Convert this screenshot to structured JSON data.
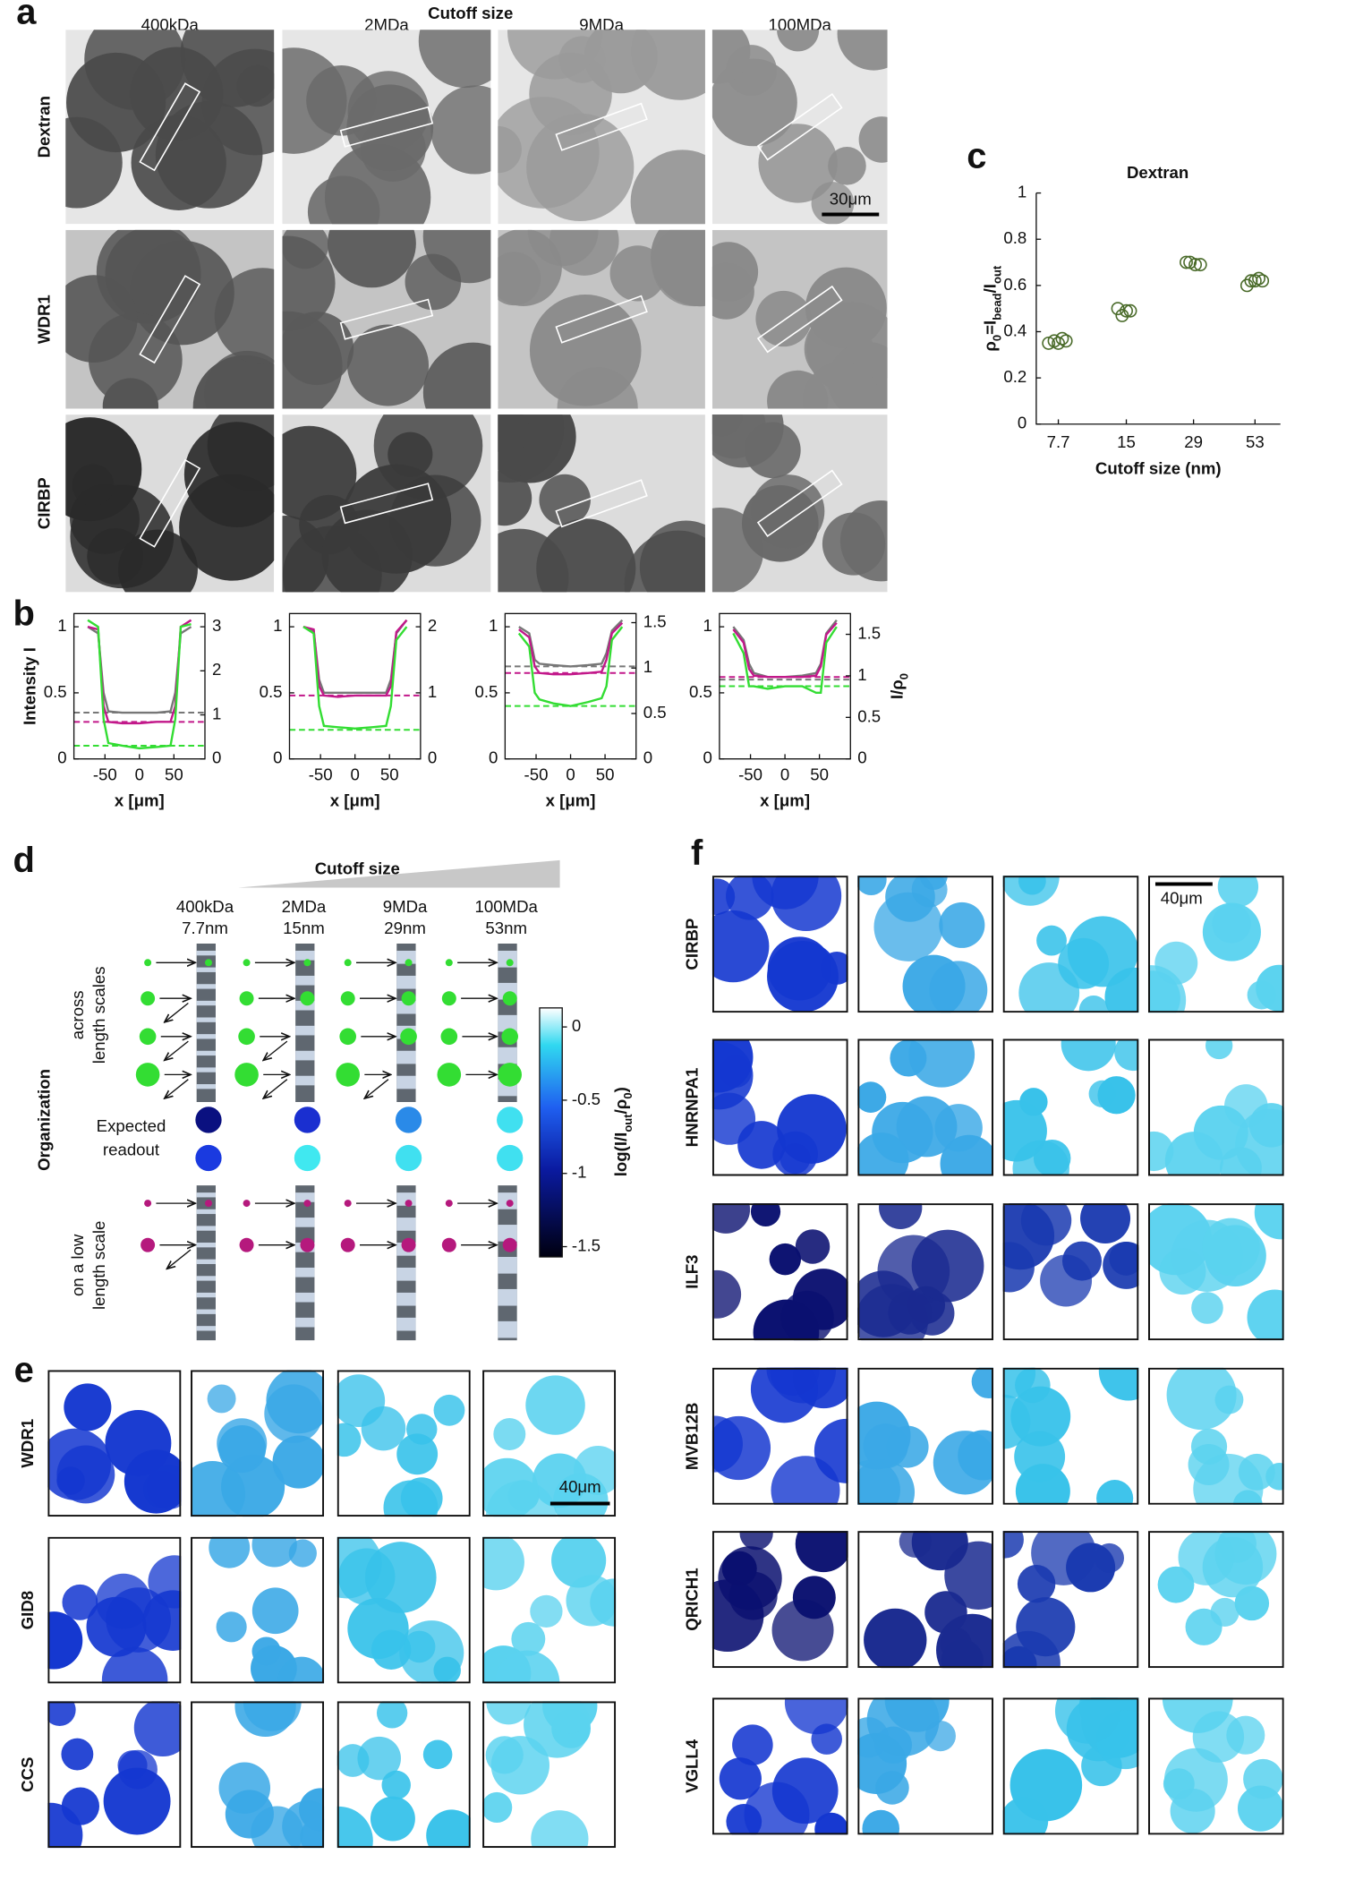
{
  "figure": {
    "a": {
      "label": "a",
      "title": "Cutoff size",
      "columns": [
        "400kDa",
        "2MDa",
        "9MDa",
        "100MDa"
      ],
      "rows": [
        {
          "text": "Dextran",
          "color": "#3d5a1f"
        },
        {
          "text": "WDR1",
          "color": "#b5197d"
        },
        {
          "text": "CIRBP",
          "color": "#33dd33"
        }
      ],
      "scale_bar": "30μm"
    },
    "b": {
      "label": "b"
    },
    "c": {
      "label": "c"
    },
    "d": {
      "label": "d",
      "title": "Cutoff size",
      "columns": [
        "400kDa",
        "2MDa",
        "9MDa",
        "100MDa"
      ],
      "sizes": [
        "7.7nm",
        "15nm",
        "29nm",
        "53nm"
      ],
      "organization": "Organization",
      "rows": [
        [
          "across",
          "length scales"
        ],
        [
          "Expected",
          "readout"
        ],
        [
          "on a low",
          "length scale"
        ]
      ],
      "colorbar": {
        "label": [
          "log(I/I",
          "out",
          "/ρ",
          "0",
          ")"
        ],
        "lim": [
          -1.57,
          0.13
        ],
        "ticks": [
          0,
          -0.5,
          -1,
          -1.5
        ]
      }
    },
    "e": {
      "label": "e",
      "rows": [
        {
          "text": "WDR1",
          "color": "#b5197d"
        },
        {
          "text": "GID8",
          "color": "#e8431c"
        },
        {
          "text": "CCS",
          "color": "#8a2be2"
        }
      ],
      "scale_bar": "40μm"
    },
    "f": {
      "label": "f",
      "rows": [
        {
          "text": "CIRBP",
          "color": "#33dd33"
        },
        {
          "text": "HNRNPA1",
          "color": "#40d6c4"
        },
        {
          "text": "ILF3",
          "color": "#29b6e6"
        },
        {
          "text": "MVB12B",
          "color": "#5a6ee0"
        },
        {
          "text": "QRICH1",
          "color": "#f0d020"
        },
        {
          "text": "VGLL4",
          "color": "#f5a623"
        }
      ],
      "scale_bar": "40μm"
    }
  },
  "chart_data": [
    {
      "type": "line",
      "ylabel": "Intensity I",
      "xlabel": "x [μm]",
      "xlim": [
        -95,
        95
      ],
      "xticks": [
        -50,
        0,
        50
      ],
      "ylim": [
        0,
        1.1
      ],
      "yticks": [
        0,
        0.5,
        1
      ],
      "y2lim": [
        0,
        3.3
      ],
      "y2ticks": [
        0,
        1,
        2,
        3
      ],
      "x": [
        -75,
        -60,
        -52,
        -45,
        -25,
        0,
        25,
        45,
        52,
        60,
        75
      ],
      "series": [
        {
          "color": "#777777",
          "values": [
            1.0,
            0.95,
            0.5,
            0.36,
            0.35,
            0.35,
            0.35,
            0.36,
            0.5,
            0.95,
            1.0
          ]
        },
        {
          "color": "#c2188a",
          "values": [
            1.0,
            0.98,
            0.4,
            0.28,
            0.27,
            0.27,
            0.28,
            0.28,
            0.4,
            1.0,
            1.05
          ]
        },
        {
          "color": "#33dd33",
          "values": [
            1.05,
            1.0,
            0.3,
            0.12,
            0.1,
            0.08,
            0.09,
            0.1,
            0.3,
            1.0,
            1.02
          ]
        }
      ],
      "reference_lines": [
        {
          "color": "#777777",
          "value": 0.35
        },
        {
          "color": "#c2188a",
          "value": 0.28
        },
        {
          "color": "#33dd33",
          "value": 0.1
        }
      ]
    },
    {
      "type": "line",
      "xlabel": "x [μm]",
      "xlim": [
        -95,
        95
      ],
      "xticks": [
        -50,
        0,
        50
      ],
      "ylim": [
        0,
        1.1
      ],
      "yticks": [
        0,
        0.5,
        1
      ],
      "y2lim": [
        0,
        2.2
      ],
      "y2ticks": [
        0,
        1,
        2
      ],
      "x": [
        -75,
        -60,
        -52,
        -45,
        -25,
        0,
        25,
        45,
        52,
        60,
        75
      ],
      "series": [
        {
          "color": "#777777",
          "values": [
            1.0,
            0.97,
            0.6,
            0.5,
            0.5,
            0.5,
            0.5,
            0.5,
            0.6,
            0.95,
            1.05
          ]
        },
        {
          "color": "#c2188a",
          "values": [
            1.0,
            0.98,
            0.55,
            0.48,
            0.47,
            0.48,
            0.48,
            0.48,
            0.55,
            0.96,
            1.05
          ]
        },
        {
          "color": "#33dd33",
          "values": [
            1.0,
            0.95,
            0.4,
            0.25,
            0.24,
            0.23,
            0.24,
            0.25,
            0.4,
            0.9,
            1.0
          ]
        }
      ],
      "reference_lines": [
        {
          "color": "#c2188a",
          "value": 0.48
        },
        {
          "color": "#33dd33",
          "value": 0.22
        }
      ]
    },
    {
      "type": "line",
      "xlabel": "x [μm]",
      "xlim": [
        -95,
        95
      ],
      "xticks": [
        -50,
        0,
        50
      ],
      "ylim": [
        0,
        1.1
      ],
      "yticks": [
        0,
        0.5,
        1
      ],
      "y2lim": [
        0,
        1.6
      ],
      "y2ticks": [
        0,
        0.5,
        1,
        1.5
      ],
      "x": [
        -75,
        -60,
        -52,
        -45,
        -25,
        0,
        25,
        45,
        52,
        60,
        75
      ],
      "series": [
        {
          "color": "#777777",
          "values": [
            1.0,
            0.95,
            0.75,
            0.72,
            0.71,
            0.7,
            0.71,
            0.72,
            0.8,
            0.97,
            1.05
          ]
        },
        {
          "color": "#c2188a",
          "values": [
            0.98,
            0.92,
            0.7,
            0.65,
            0.64,
            0.64,
            0.65,
            0.66,
            0.75,
            0.95,
            1.03
          ]
        },
        {
          "color": "#33dd33",
          "values": [
            0.95,
            0.85,
            0.5,
            0.45,
            0.42,
            0.4,
            0.43,
            0.46,
            0.55,
            0.9,
            1.0
          ]
        }
      ],
      "reference_lines": [
        {
          "color": "#777777",
          "value": 0.7
        },
        {
          "color": "#c2188a",
          "value": 0.65
        },
        {
          "color": "#33dd33",
          "value": 0.4
        }
      ]
    },
    {
      "type": "line",
      "xlabel": "x [μm]",
      "y2label": [
        "I/ρ",
        "0"
      ],
      "xlim": [
        -95,
        95
      ],
      "xticks": [
        -50,
        0,
        50
      ],
      "ylim": [
        0,
        1.1
      ],
      "yticks": [
        0,
        0.5,
        1
      ],
      "y2lim": [
        0,
        1.75
      ],
      "y2ticks": [
        0,
        0.5,
        1,
        1.5
      ],
      "x": [
        -75,
        -60,
        -52,
        -45,
        -25,
        0,
        25,
        45,
        52,
        60,
        75
      ],
      "series": [
        {
          "color": "#777777",
          "values": [
            1.0,
            0.9,
            0.72,
            0.65,
            0.62,
            0.62,
            0.63,
            0.65,
            0.72,
            0.95,
            1.05
          ]
        },
        {
          "color": "#c2188a",
          "values": [
            0.98,
            0.88,
            0.68,
            0.63,
            0.62,
            0.62,
            0.62,
            0.63,
            0.7,
            0.94,
            1.03
          ]
        },
        {
          "color": "#33dd33",
          "values": [
            0.95,
            0.8,
            0.55,
            0.55,
            0.53,
            0.55,
            0.55,
            0.5,
            0.5,
            0.88,
            1.0
          ]
        }
      ],
      "reference_lines": [
        {
          "color": "#777777",
          "value": 0.6
        },
        {
          "color": "#c2188a",
          "value": 0.62
        },
        {
          "color": "#33dd33",
          "value": 0.55
        }
      ]
    },
    {
      "type": "scatter",
      "title": "Dextran",
      "title_color": "#3d5a1f",
      "xlabel": "Cutoff size (nm)",
      "ylabel": [
        "ρ",
        "0",
        "=I",
        "bead",
        "/I",
        "out"
      ],
      "xscale": "log",
      "xlim": [
        6.2,
        68
      ],
      "xticks": [
        7.7,
        15,
        29,
        53
      ],
      "ylim": [
        0,
        1
      ],
      "yticks": [
        0,
        0.2,
        0.4,
        0.6,
        0.8,
        1
      ],
      "series": [
        {
          "color": "#4a6b2a",
          "x": [
            7.0,
            7.4,
            7.7,
            8.0,
            8.3,
            13.8,
            14.4,
            15,
            15.6,
            27,
            28,
            29.5,
            31,
            49,
            51,
            53,
            55,
            57
          ],
          "values": [
            0.35,
            0.36,
            0.35,
            0.37,
            0.36,
            0.5,
            0.47,
            0.49,
            0.49,
            0.7,
            0.7,
            0.69,
            0.69,
            0.6,
            0.62,
            0.62,
            0.63,
            0.62
          ]
        }
      ]
    }
  ]
}
